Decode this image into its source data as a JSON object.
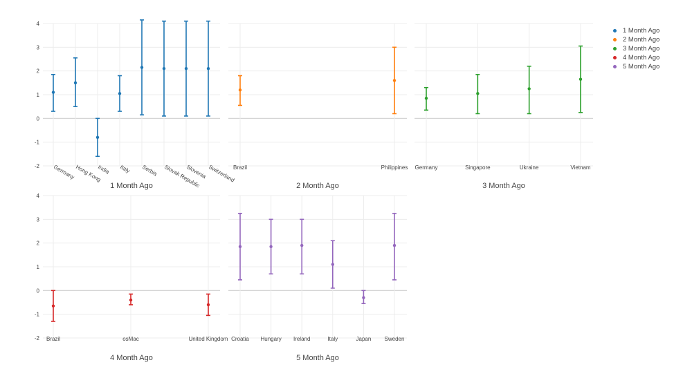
{
  "chart_data": {
    "type": "scatter",
    "error_bars": true,
    "grid": true,
    "legend_position": "top-right",
    "ylim": [
      -2,
      4
    ],
    "y_ticks": [
      -2,
      -1,
      0,
      1,
      2,
      3,
      4
    ],
    "legend": [
      {
        "name": "1 Month Ago",
        "color": "#1f77b4"
      },
      {
        "name": "2 Month Ago",
        "color": "#ff7f0e"
      },
      {
        "name": "3 Month Ago",
        "color": "#2ca02c"
      },
      {
        "name": "4 Month Ago",
        "color": "#d62728"
      },
      {
        "name": "5 Month Ago",
        "color": "#9467bd"
      }
    ],
    "panels": [
      {
        "title": "1 Month Ago",
        "color": "#1f77b4",
        "rotate_labels": true,
        "categories": [
          "Germany",
          "Hong Kong",
          "India",
          "Italy",
          "Serbia",
          "Slovak Republic",
          "Slovenia",
          "Switzerland"
        ],
        "values": [
          1.1,
          1.5,
          -0.8,
          1.05,
          2.15,
          2.1,
          2.1,
          2.1
        ],
        "lower": [
          0.3,
          0.5,
          -1.6,
          0.3,
          0.15,
          0.1,
          0.1,
          0.1
        ],
        "upper": [
          1.85,
          2.55,
          0.0,
          1.8,
          4.15,
          4.1,
          4.1,
          4.1
        ]
      },
      {
        "title": "2 Month Ago",
        "color": "#ff7f0e",
        "rotate_labels": false,
        "categories": [
          "Brazil",
          "Philippines"
        ],
        "values": [
          1.2,
          1.6
        ],
        "lower": [
          0.55,
          0.2
        ],
        "upper": [
          1.8,
          3.0
        ]
      },
      {
        "title": "3 Month Ago",
        "color": "#2ca02c",
        "rotate_labels": false,
        "categories": [
          "Germany",
          "Singapore",
          "Ukraine",
          "Vietnam"
        ],
        "values": [
          0.85,
          1.05,
          1.25,
          1.65
        ],
        "lower": [
          0.35,
          0.2,
          0.2,
          0.25
        ],
        "upper": [
          1.3,
          1.85,
          2.2,
          3.05
        ]
      },
      {
        "title": "4 Month Ago",
        "color": "#d62728",
        "rotate_labels": false,
        "categories": [
          "Brazil",
          "osMac",
          "United Kingdom"
        ],
        "values": [
          -0.65,
          -0.4,
          -0.6
        ],
        "lower": [
          -1.3,
          -0.6,
          -1.05
        ],
        "upper": [
          0.0,
          -0.15,
          -0.15
        ]
      },
      {
        "title": "5 Month Ago",
        "color": "#9467bd",
        "rotate_labels": false,
        "categories": [
          "Croatia",
          "Hungary",
          "Ireland",
          "Italy",
          "Japan",
          "Sweden"
        ],
        "values": [
          1.85,
          1.85,
          1.9,
          1.1,
          -0.3,
          1.9
        ],
        "lower": [
          0.45,
          0.7,
          0.7,
          0.1,
          -0.55,
          0.45
        ],
        "upper": [
          3.25,
          3.0,
          3.0,
          2.1,
          0.0,
          3.25
        ]
      }
    ]
  }
}
